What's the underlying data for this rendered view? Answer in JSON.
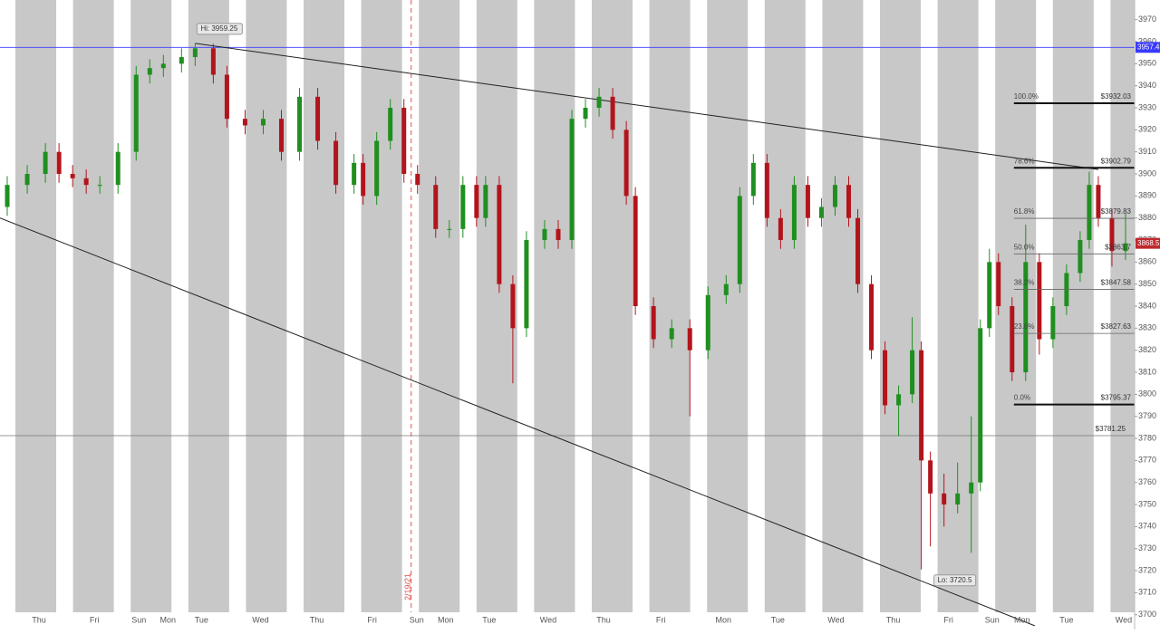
{
  "chart_data": {
    "type": "candlestick",
    "x": [
      8,
      30,
      50,
      65,
      80,
      95,
      110,
      130,
      150,
      165,
      180,
      200,
      215,
      235,
      250,
      270,
      290,
      310,
      330,
      350,
      370,
      390,
      400,
      415,
      430,
      445,
      460,
      480,
      495,
      510,
      525,
      535,
      550,
      565,
      580,
      600,
      615,
      630,
      645,
      660,
      675,
      690,
      700,
      720,
      740,
      760,
      780,
      800,
      815,
      830,
      845,
      860,
      875,
      890,
      905,
      920,
      935,
      945,
      960,
      975,
      990,
      1005,
      1015,
      1025,
      1040,
      1055,
      1070,
      1080,
      1090,
      1100,
      1115,
      1130,
      1145,
      1160,
      1175,
      1190,
      1200,
      1210,
      1225,
      1240
    ],
    "open": [
      3885,
      3895,
      3900,
      3910,
      3900,
      3898,
      3895,
      3895,
      3910,
      3945,
      3948,
      3950,
      3953,
      3957,
      3945,
      3925,
      3922,
      3925,
      3910,
      3935,
      3915,
      3895,
      3905,
      3890,
      3915,
      3930,
      3900,
      3895,
      3875,
      3875,
      3895,
      3880,
      3895,
      3850,
      3830,
      3870,
      3875,
      3870,
      3925,
      3930,
      3935,
      3920,
      3890,
      3840,
      3825,
      3830,
      3820,
      3845,
      3850,
      3890,
      3905,
      3880,
      3870,
      3895,
      3880,
      3885,
      3895,
      3880,
      3850,
      3820,
      3795,
      3800,
      3820,
      3770,
      3755,
      3750,
      3755,
      3760,
      3830,
      3860,
      3840,
      3810,
      3860,
      3825,
      3840,
      3855,
      3870,
      3895,
      3880,
      3865
    ],
    "high": [
      3899,
      3904,
      3914,
      3914,
      3904,
      3902,
      3899,
      3914,
      3949,
      3952,
      3954,
      3957,
      3959.25,
      3959,
      3949,
      3929,
      3929,
      3929,
      3939,
      3939,
      3919,
      3909,
      3909,
      3919,
      3934,
      3934,
      3904,
      3899,
      3879,
      3899,
      3899,
      3899,
      3899,
      3854,
      3874,
      3879,
      3879,
      3929,
      3934,
      3939,
      3939,
      3924,
      3894,
      3844,
      3834,
      3834,
      3849,
      3854,
      3894,
      3909,
      3909,
      3884,
      3899,
      3899,
      3889,
      3899,
      3899,
      3884,
      3854,
      3824,
      3804,
      3835,
      3824,
      3774,
      3764,
      3769,
      3790,
      3834,
      3866,
      3864,
      3844,
      3877,
      3864,
      3844,
      3859,
      3874,
      3901,
      3899,
      3884,
      3882
    ],
    "low": [
      3881,
      3891,
      3896,
      3896,
      3894,
      3891,
      3891,
      3891,
      3906,
      3941,
      3944,
      3946,
      3949,
      3941,
      3921,
      3918,
      3918,
      3906,
      3906,
      3911,
      3891,
      3891,
      3886,
      3886,
      3911,
      3896,
      3891,
      3871,
      3871,
      3871,
      3876,
      3876,
      3846,
      3805,
      3826,
      3866,
      3866,
      3866,
      3921,
      3926,
      3916,
      3886,
      3836,
      3821,
      3821,
      3790,
      3816,
      3841,
      3846,
      3886,
      3876,
      3866,
      3866,
      3876,
      3876,
      3881,
      3876,
      3846,
      3816,
      3791,
      3781,
      3796,
      3720.5,
      3731,
      3740,
      3746,
      3728,
      3756,
      3826,
      3836,
      3806,
      3806,
      3818,
      3821,
      3836,
      3851,
      3866,
      3876,
      3858,
      3861
    ],
    "close": [
      3895,
      3900,
      3910,
      3900,
      3898,
      3895,
      3895,
      3910,
      3945,
      3948,
      3950,
      3953,
      3957,
      3945,
      3925,
      3922,
      3925,
      3910,
      3935,
      3915,
      3895,
      3905,
      3890,
      3915,
      3930,
      3900,
      3895,
      3875,
      3875,
      3895,
      3880,
      3895,
      3850,
      3830,
      3870,
      3875,
      3870,
      3925,
      3930,
      3935,
      3920,
      3890,
      3840,
      3825,
      3830,
      3820,
      3845,
      3850,
      3890,
      3905,
      3880,
      3870,
      3895,
      3880,
      3885,
      3895,
      3880,
      3850,
      3820,
      3795,
      3800,
      3820,
      3770,
      3755,
      3750,
      3755,
      3760,
      3830,
      3860,
      3840,
      3810,
      3860,
      3825,
      3840,
      3855,
      3870,
      3895,
      3880,
      3865,
      3868.5
    ],
    "up_color": "#1f8f1f",
    "down_color": "#b3141c",
    "xlim": [
      0,
      1250
    ],
    "ylim": [
      3693.3,
      3978.9
    ],
    "yticks": [
      3700,
      3710,
      3720,
      3730,
      3740,
      3750,
      3760,
      3770,
      3780,
      3790,
      3800,
      3810,
      3820,
      3830,
      3840,
      3850,
      3860,
      3870,
      3880,
      3890,
      3900,
      3910,
      3920,
      3930,
      3940,
      3950,
      3960,
      3970
    ],
    "xticks": [
      {
        "value": 43,
        "label": "Thu"
      },
      {
        "value": 104,
        "label": "Fri"
      },
      {
        "value": 153,
        "label": "Sun"
      },
      {
        "value": 185,
        "label": "Mon"
      },
      {
        "value": 222,
        "label": "Tue"
      },
      {
        "value": 287,
        "label": "Wed"
      },
      {
        "value": 349,
        "label": "Thu"
      },
      {
        "value": 410,
        "label": "Fri"
      },
      {
        "value": 459,
        "label": "Sun"
      },
      {
        "value": 491,
        "label": "Mon"
      },
      {
        "value": 539,
        "label": "Tue"
      },
      {
        "value": 604,
        "label": "Wed"
      },
      {
        "value": 665,
        "label": "Thu"
      },
      {
        "value": 728,
        "label": "Fri"
      },
      {
        "value": 797,
        "label": "Mon"
      },
      {
        "value": 857,
        "label": "Tue"
      },
      {
        "value": 921,
        "label": "Wed"
      },
      {
        "value": 984,
        "label": "Thu"
      },
      {
        "value": 1045,
        "label": "Fri"
      },
      {
        "value": 1093,
        "label": "Sun"
      },
      {
        "value": 1126,
        "label": "Mon"
      },
      {
        "value": 1175,
        "label": "Tue"
      },
      {
        "value": 1238,
        "label": "Wed"
      }
    ],
    "hi_label": {
      "x": 215,
      "value": 3959.25,
      "label": "Hi: 3959.25"
    },
    "lo_label": {
      "x": 1015,
      "value": 3720.5,
      "label": "Lo: 3720.5"
    },
    "event_marker": {
      "x": 453,
      "label": "2/19/21",
      "color": "#e05050"
    },
    "horizontal_lines": [
      {
        "value": 3957.4,
        "label": "3957.4",
        "color": "#3a3aff"
      },
      {
        "value": 3781.25,
        "label": "$3781.25",
        "color": "#777777"
      }
    ],
    "last_price": {
      "value": 3868.5,
      "label": "3868.5",
      "color": "#c0282d"
    },
    "trendlines": [
      {
        "x": [
          215,
          1210
        ],
        "y": [
          3959.25,
          3902
        ]
      },
      {
        "x": [
          0,
          1140
        ],
        "y": [
          3880,
          3695
        ]
      }
    ],
    "fib": {
      "x_start": 1117,
      "x_end": 1250,
      "levels": [
        {
          "ratio": "100.0%",
          "value": 3932.03,
          "label": "$3932.03"
        },
        {
          "ratio": "78.6%",
          "value": 3902.79,
          "label": "$3902.79"
        },
        {
          "ratio": "61.8%",
          "value": 3879.83,
          "label": "$3879.83"
        },
        {
          "ratio": "50.0%",
          "value": 3863.7,
          "label": "$3863.7"
        },
        {
          "ratio": "38.2%",
          "value": 3847.58,
          "label": "$3847.58"
        },
        {
          "ratio": "23.6%",
          "value": 3827.63,
          "label": "$3827.63"
        },
        {
          "ratio": "0.0%",
          "value": 3795.37,
          "label": "$3795.37"
        }
      ]
    }
  }
}
